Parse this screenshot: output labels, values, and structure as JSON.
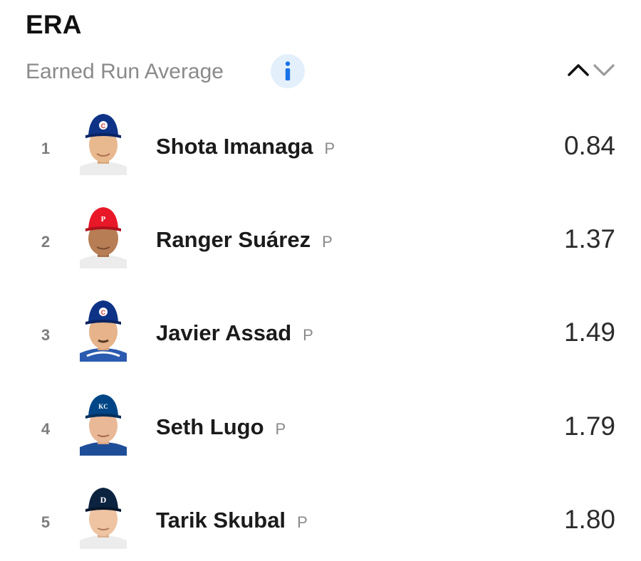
{
  "header": {
    "title": "ERA",
    "subtitle": "Earned Run Average",
    "info_icon": "info-icon",
    "sort_up_icon": "chevron-up-icon",
    "sort_down_icon": "chevron-down-icon"
  },
  "colors": {
    "info_bg": "#e3f0fc",
    "info_fg": "#1a73e8",
    "cubs": "#0e3386",
    "phillies": "#e81828",
    "royals": "#004687",
    "tigers": "#0c2340"
  },
  "leaders": [
    {
      "rank": "1",
      "name": "Shota Imanaga",
      "position": "P",
      "value": "0.84",
      "team_logo": "C"
    },
    {
      "rank": "2",
      "name": "Ranger Suárez",
      "position": "P",
      "value": "1.37",
      "team_logo": "P"
    },
    {
      "rank": "3",
      "name": "Javier Assad",
      "position": "P",
      "value": "1.49",
      "team_logo": "C"
    },
    {
      "rank": "4",
      "name": "Seth Lugo",
      "position": "P",
      "value": "1.79",
      "team_logo": "KC"
    },
    {
      "rank": "5",
      "name": "Tarik Skubal",
      "position": "P",
      "value": "1.80",
      "team_logo": "D"
    }
  ]
}
